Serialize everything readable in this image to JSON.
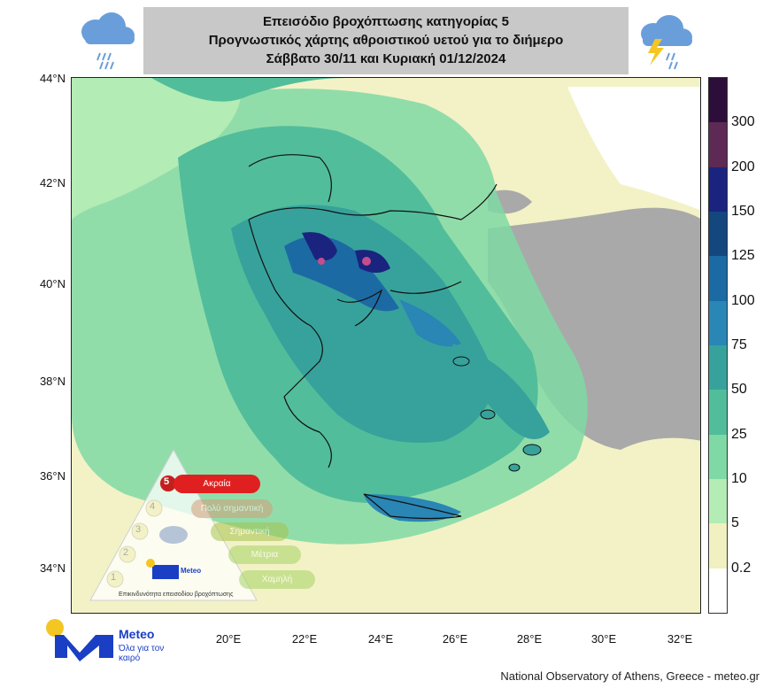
{
  "header": {
    "line1": "Επεισόδιο βροχόπτωσης κατηγορίας 5",
    "line2": "Προγνωστικός χάρτης αθροιστικού υετού για το διήμερο",
    "line3": "Σάββατο 30/11 και Κυριακή 01/12/2024",
    "left_icon": "rain-cloud-icon",
    "right_icon": "thunderstorm-cloud-icon"
  },
  "map": {
    "lat_labels": [
      "44°N",
      "42°N",
      "40°N",
      "38°N",
      "36°N",
      "34°N"
    ],
    "lon_labels": [
      "20°E",
      "22°E",
      "24°E",
      "26°E",
      "28°E",
      "30°E",
      "32°E"
    ],
    "extent": {
      "lon": [
        17,
        33
      ],
      "lat": [
        33,
        44
      ]
    }
  },
  "colorbar": {
    "labels": [
      "300",
      "200",
      "150",
      "125",
      "100",
      "75",
      "50",
      "25",
      "10",
      "5",
      "0.2"
    ],
    "colors": [
      "#2d0e3a",
      "#5c2a55",
      "#1a237e",
      "#14477e",
      "#1c6aa3",
      "#2a86b5",
      "#37a29c",
      "#52bd9a",
      "#7fd9a4",
      "#b3ecb5",
      "#f1f0c0",
      "#ffffff"
    ]
  },
  "legend": {
    "levels": [
      "5",
      "4",
      "3",
      "2",
      "1"
    ],
    "level_labels": [
      "Ακραία",
      "Πολύ σημαντική",
      "Σημαντική",
      "Μέτρια",
      "Χαμηλή"
    ],
    "org_name": "Meteo",
    "caption": "Επικινδυνότητα επεισοδίου βροχόπτωσης",
    "active_level": 5
  },
  "branding": {
    "name": "Meteo",
    "slogan": "Όλα για τον καιρό",
    "credit": "National Observatory of Athens, Greece - meteo.gr"
  }
}
